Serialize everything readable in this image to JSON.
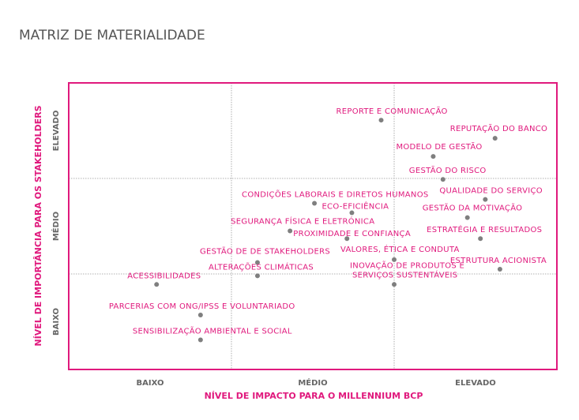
{
  "chart_data": {
    "type": "scatter",
    "title": "MATRIZ DE MATERIALIDADE",
    "xlabel": "NÍVEL DE IMPACTO PARA O MILLENNIUM BCP",
    "ylabel": "NÍVEL DE IMPORTÂNCIA PARA OS STAKEHOLDERS",
    "xlim": [
      0,
      3
    ],
    "ylim": [
      0,
      3
    ],
    "x_ticks": [
      {
        "value": 0.5,
        "label": "BAIXO"
      },
      {
        "value": 1.5,
        "label": "MÉDIO"
      },
      {
        "value": 2.5,
        "label": "ELEVADO"
      }
    ],
    "y_ticks": [
      {
        "value": 0.5,
        "label": "BAIXO"
      },
      {
        "value": 1.5,
        "label": "MÉDIO"
      },
      {
        "value": 2.5,
        "label": "ELEVADO"
      }
    ],
    "grid": true,
    "colors": {
      "frame": "#e0197d",
      "label": "#e0197d",
      "point": "#7f7f7f",
      "grid": "#999999"
    },
    "points": [
      {
        "name": "REPORTE E COMUNICAÇÃO",
        "x": 1.92,
        "y": 2.61
      },
      {
        "name": "REPUTAÇÃO DO BANCO",
        "x": 2.62,
        "y": 2.42
      },
      {
        "name": "MODELO DE GESTÃO",
        "x": 2.24,
        "y": 2.23
      },
      {
        "name": "GESTÃO DO RISCO",
        "x": 2.3,
        "y": 1.99
      },
      {
        "name": "QUALIDADE DO SERVIÇO",
        "x": 2.56,
        "y": 1.78
      },
      {
        "name": "CONDIÇÕES LABORAIS E DIRETOS HUMANOS",
        "x": 1.51,
        "y": 1.74
      },
      {
        "name": "ECO-EFICIÊNCIA",
        "x": 1.74,
        "y": 1.64
      },
      {
        "name": "GESTÃO DA MOTIVAÇÃO",
        "x": 2.45,
        "y": 1.59
      },
      {
        "name": "SEGURANÇA FÍSICA E ELETRÓNICA",
        "x": 1.36,
        "y": 1.45
      },
      {
        "name": "ESTRATÉGIA E RESULTADOS",
        "x": 2.53,
        "y": 1.37
      },
      {
        "name": "PROXIMIDADE E CONFIANÇA",
        "x": 1.71,
        "y": 1.37
      },
      {
        "name": "VALORES, ÉTICA E CONDUTA",
        "x": 2.0,
        "y": 1.15
      },
      {
        "name": "GESTÃO DE DE STAKEHOLDERS",
        "x": 1.16,
        "y": 1.12
      },
      {
        "name": "ESTRUTURA ACIONISTA",
        "x": 2.65,
        "y": 1.05
      },
      {
        "name": "ALTERAÇÕES CLIMÁTICAS",
        "x": 1.16,
        "y": 0.98
      },
      {
        "name": "INOVAÇÃO DE PRODUTOS E SERVIÇOS SUSTENTÁVEIS",
        "x": 2.0,
        "y": 0.89
      },
      {
        "name": "ACESSIBILIDADES",
        "x": 0.54,
        "y": 0.89
      },
      {
        "name": "PARCERIAS COM ONG/IPSS E VOLUNTARIADO",
        "x": 0.81,
        "y": 0.57
      },
      {
        "name": "SENSIBILIZAÇÃO AMBIENTAL E SOCIAL",
        "x": 0.81,
        "y": 0.31
      }
    ]
  }
}
